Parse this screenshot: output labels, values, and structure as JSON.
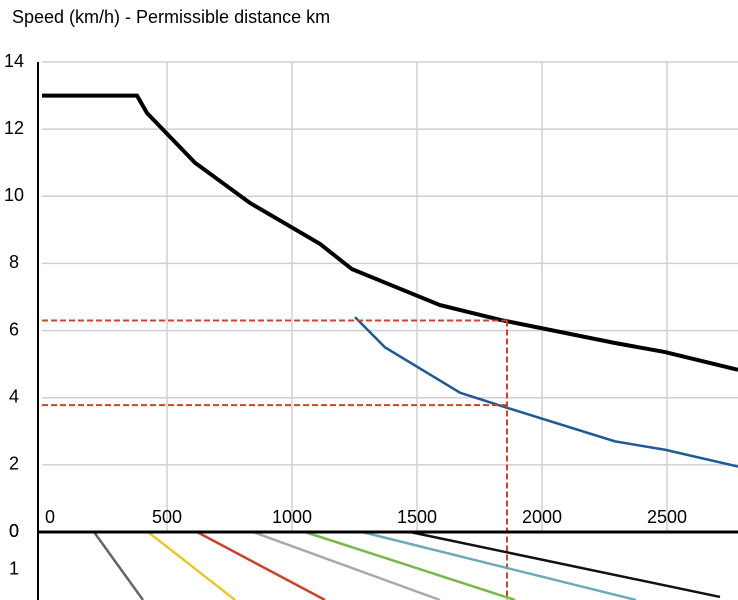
{
  "chart_data": [
    {
      "type": "line",
      "title": "Speed (km/h) - Permissible distance km",
      "xlim": [
        0,
        2784
      ],
      "xticks": [
        0,
        500,
        1000,
        1500,
        2000,
        2500
      ],
      "ylim": [
        0,
        14
      ],
      "yticks": [
        0,
        2,
        4,
        6,
        8,
        10,
        12,
        14
      ],
      "grid": true,
      "series": [
        {
          "color": "#000000",
          "x": [
            0,
            380,
            420,
            612,
            832,
            1112,
            1240,
            1592,
            1832,
            2292,
            2492,
            2784
          ],
          "values": [
            13.0,
            13.0,
            12.48,
            11.0,
            9.8,
            8.58,
            7.83,
            6.76,
            6.32,
            5.63,
            5.36,
            4.83
          ]
        },
        {
          "color": "#1f5a96",
          "x": [
            1252,
            1372,
            1672,
            1860,
            2292,
            2492,
            2784
          ],
          "values": [
            6.4,
            5.5,
            4.15,
            3.7,
            2.7,
            2.45,
            1.95
          ]
        }
      ],
      "reference": {
        "x": 1860,
        "y": [
          6.3,
          3.78
        ],
        "color": "#c8442c"
      }
    },
    {
      "type": "line",
      "xlim": [
        0,
        2784
      ],
      "ylim": [
        0,
        1.79
      ],
      "yticks": [
        0,
        1
      ],
      "inverted": true,
      "series": [
        {
          "color": "#666666",
          "x": [
            208,
            404
          ],
          "values": [
            0,
            1.79
          ]
        },
        {
          "color": "#e8c832",
          "x": [
            424,
            772
          ],
          "values": [
            0,
            1.79
          ]
        },
        {
          "color": "#c8442c",
          "x": [
            620,
            1132
          ],
          "values": [
            0,
            1.79
          ]
        },
        {
          "color": "#aaaaaa",
          "x": [
            844,
            1592
          ],
          "values": [
            0,
            1.79
          ]
        },
        {
          "color": "#7ab648",
          "x": [
            1052,
            1892
          ],
          "values": [
            0,
            1.79
          ]
        },
        {
          "color": "#6aaabb",
          "x": [
            1280,
            2376
          ],
          "values": [
            0,
            1.79
          ]
        },
        {
          "color": "#111111",
          "x": [
            1472,
            2712
          ],
          "values": [
            0,
            1.71
          ]
        }
      ]
    }
  ]
}
